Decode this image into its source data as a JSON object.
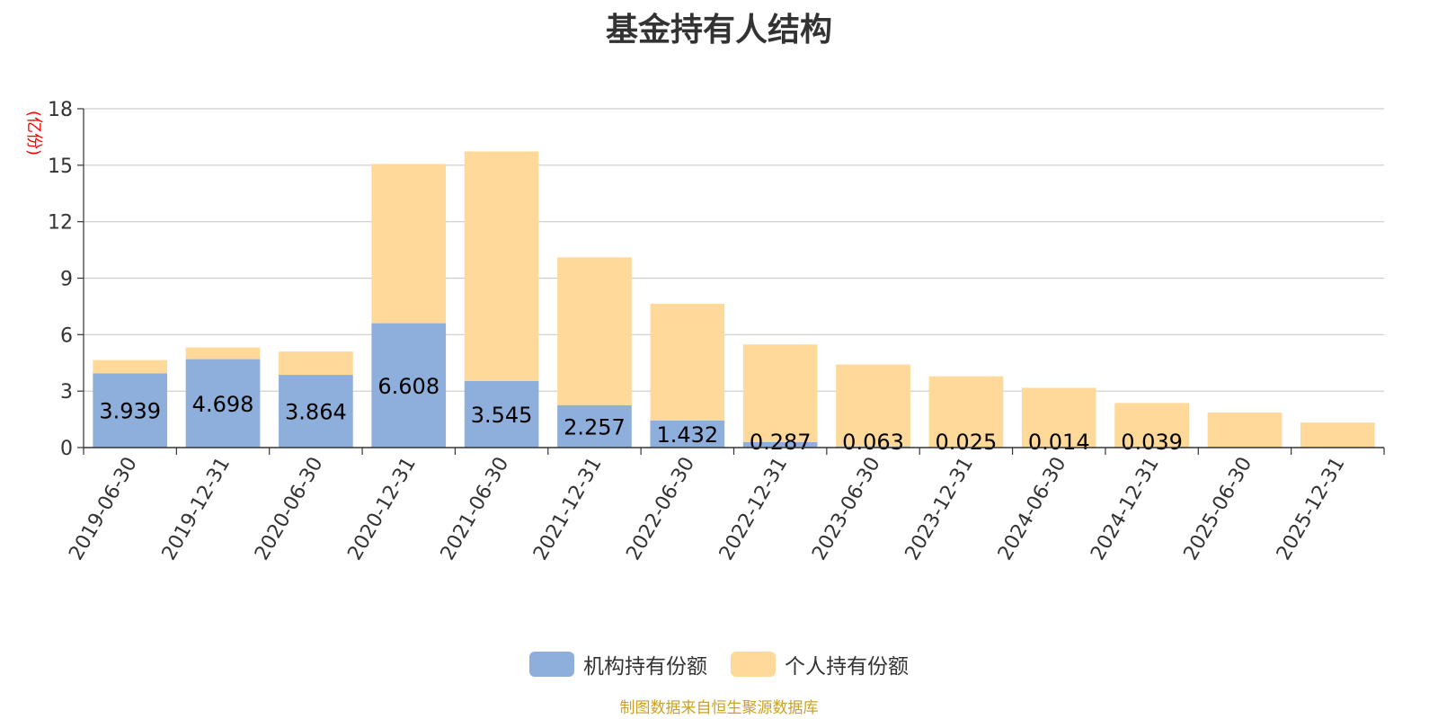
{
  "chart_data": {
    "type": "bar",
    "stacked": true,
    "title": "基金持有人结构",
    "ylabel": "(亿份)",
    "xlabel": "",
    "ylim": [
      0,
      18
    ],
    "yticks": [
      "0",
      "3",
      "6",
      "9",
      "12",
      "15",
      "18"
    ],
    "grid": true,
    "legend_position": "bottom",
    "categories": [
      "2019-06-30",
      "2019-12-31",
      "2020-06-30",
      "2020-12-31",
      "2021-06-30",
      "2021-12-31",
      "2022-06-30",
      "2022-12-31",
      "2023-06-30",
      "2023-12-31",
      "2024-06-30",
      "2024-12-31",
      "2025-06-30",
      "2025-12-31"
    ],
    "series": [
      {
        "name": "机构持有份额",
        "color": "#8eaedb",
        "values": [
          3.939,
          4.698,
          3.864,
          6.608,
          3.545,
          2.257,
          1.432,
          0.287,
          0.063,
          0.025,
          0.014,
          0.039,
          0,
          0
        ],
        "labels": [
          "3.939",
          "4.698",
          "3.864",
          "6.608",
          "3.545",
          "2.257",
          "1.432",
          "0.287",
          "0.063",
          "0.025",
          "0.014",
          "0.039",
          "",
          ""
        ]
      },
      {
        "name": "个人持有份额",
        "color": "#ffd999",
        "values": [
          0.71,
          0.62,
          1.24,
          8.46,
          12.19,
          7.85,
          6.21,
          5.19,
          4.35,
          3.76,
          3.16,
          2.33,
          1.86,
          1.33
        ]
      }
    ]
  },
  "footer": "制图数据来自恒生聚源数据库"
}
